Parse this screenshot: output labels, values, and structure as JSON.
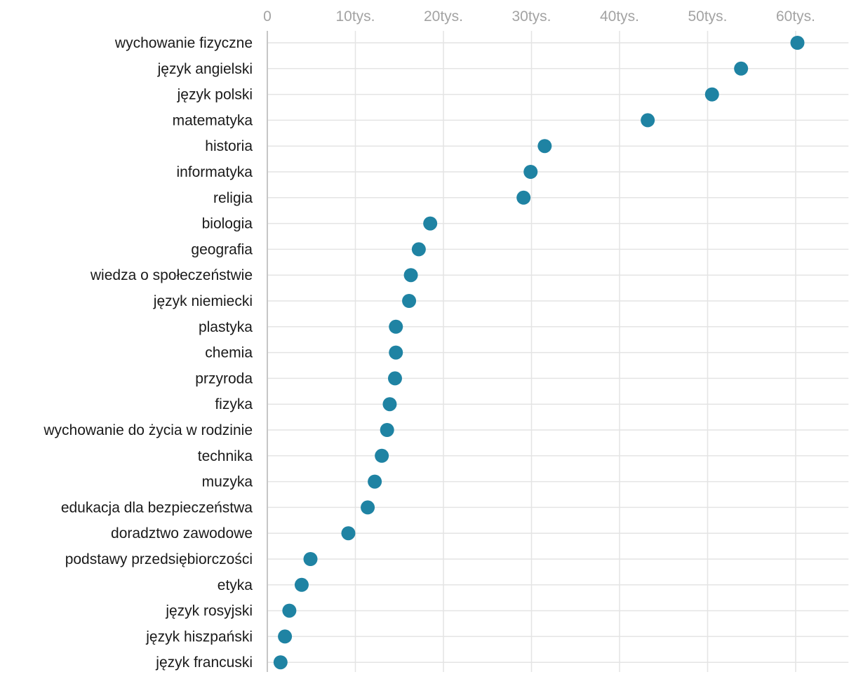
{
  "chart_data": {
    "type": "scatter",
    "orientation": "horizontal",
    "title": "",
    "xlabel": "",
    "ylabel": "",
    "xlim": [
      0,
      66000
    ],
    "x_ticks": [
      {
        "value": 0,
        "label": "0"
      },
      {
        "value": 10000,
        "label": "10tys."
      },
      {
        "value": 20000,
        "label": "20tys."
      },
      {
        "value": 30000,
        "label": "30tys."
      },
      {
        "value": 40000,
        "label": "40tys."
      },
      {
        "value": 50000,
        "label": "50tys."
      },
      {
        "value": 60000,
        "label": "60tys."
      }
    ],
    "categories": [
      "wychowanie fizyczne",
      "język angielski",
      "język polski",
      "matematyka",
      "historia",
      "informatyka",
      "religia",
      "biologia",
      "geografia",
      "wiedza o społeczeństwie",
      "język niemiecki",
      "plastyka",
      "chemia",
      "przyroda",
      "fizyka",
      "wychowanie do życia w rodzinie",
      "technika",
      "muzyka",
      "edukacja dla bezpieczeństwa",
      "doradztwo zawodowe",
      "podstawy przedsiębiorczości",
      "etyka",
      "język rosyjski",
      "język hiszpański",
      "język francuski"
    ],
    "values": [
      60200,
      53800,
      50500,
      43200,
      31500,
      29900,
      29100,
      18500,
      17200,
      16300,
      16100,
      14600,
      14600,
      14500,
      13900,
      13600,
      13000,
      12200,
      11400,
      9200,
      4900,
      3900,
      2500,
      2000,
      1500
    ],
    "grid": true,
    "point_color": "#1f83a3",
    "grid_color": "#e4e4e4",
    "axis_color": "#c6c6c6"
  }
}
